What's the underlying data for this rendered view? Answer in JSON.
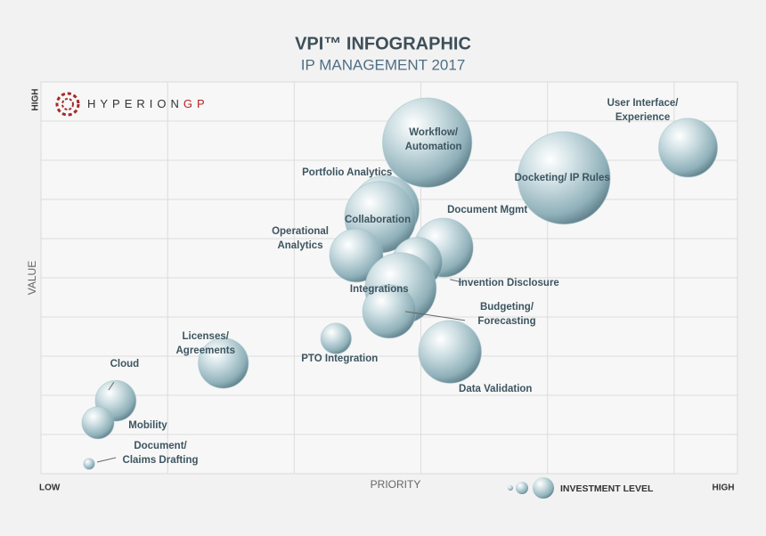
{
  "chart_data": {
    "type": "bubble",
    "title": "VPI™ INFOGRAPHIC",
    "subtitle": "IP MANAGEMENT 2017",
    "logo": [
      "HYPERION",
      "GP"
    ],
    "x_label": "PRIORITY",
    "y_label": "VALUE",
    "legend_label": "INVESTMENT LEVEL",
    "xlim": [
      0,
      5.5
    ],
    "ylim": [
      0,
      10
    ],
    "xticks": [
      {
        "value": 0,
        "label": "LOW"
      },
      {
        "value": 5.5,
        "label": "HIGH"
      }
    ],
    "yticks": [
      {
        "value": 10,
        "label": "HIGH"
      }
    ],
    "grid_x": [
      1,
      2,
      3,
      4,
      5
    ],
    "grid_y": [
      1,
      2,
      3,
      4,
      5,
      6,
      7,
      8,
      9
    ],
    "color": "#9fbfc8",
    "series": [
      {
        "labels": [
          [
            "Workflow/",
            "Automation"
          ],
          [
            "User Interface/",
            "Experience"
          ],
          [
            "Docketing/ IP Rules"
          ],
          [
            "Portfolio Analytics"
          ],
          [
            "Collaboration"
          ],
          [
            "Document Mgmt"
          ],
          [
            "Invention Disclosure"
          ],
          [
            "Operational",
            "Analytics"
          ],
          [
            "Integrations"
          ],
          [
            "Budgeting/",
            "Forecasting"
          ],
          [
            "PTO Integration"
          ],
          [
            "Data Validation"
          ],
          [
            "Licenses/",
            "Agreements"
          ],
          [
            "Cloud"
          ],
          [
            "Mobility"
          ],
          [
            "Document/",
            "Claims Drafting"
          ]
        ],
        "x": [
          3.05,
          5.11,
          4.13,
          2.72,
          2.68,
          3.18,
          2.97,
          2.49,
          2.84,
          2.75,
          2.33,
          3.23,
          1.44,
          0.59,
          0.45,
          0.38
        ],
        "y": [
          8.45,
          8.32,
          7.55,
          6.75,
          6.55,
          5.77,
          5.39,
          5.57,
          4.73,
          4.14,
          3.45,
          3.11,
          2.82,
          1.86,
          1.3,
          0.25
        ],
        "sizes": [
          1.14,
          0.75,
          1.18,
          0.86,
          0.91,
          0.75,
          0.64,
          0.68,
          0.91,
          0.68,
          0.39,
          0.8,
          0.64,
          0.52,
          0.41,
          0.14
        ]
      }
    ]
  }
}
